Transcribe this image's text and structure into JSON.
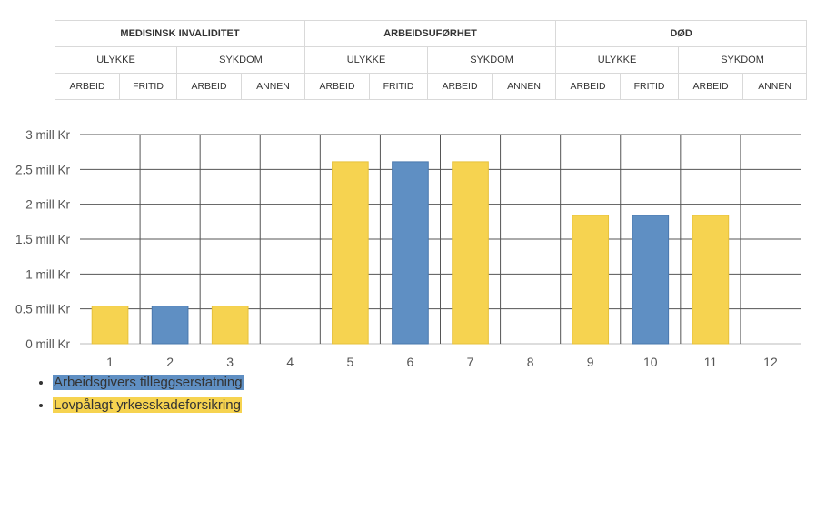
{
  "header": {
    "row1": [
      "MEDISINSK INVALIDITET",
      "ARBEIDSUFØRHET",
      "DØD"
    ],
    "row2": [
      "ULYKKE",
      "SYKDOM",
      "ULYKKE",
      "SYKDOM",
      "ULYKKE",
      "SYKDOM"
    ],
    "row3": [
      "ARBEID",
      "FRITID",
      "ARBEID",
      "ANNEN",
      "ARBEID",
      "FRITID",
      "ARBEID",
      "ANNEN",
      "ARBEID",
      "FRITID",
      "ARBEID",
      "ANNEN"
    ]
  },
  "legend": [
    {
      "label": "Arbeidsgivers tilleggserstatning",
      "color": "#5f8fc3"
    },
    {
      "label": "Lovpålagt yrkesskadeforsikring",
      "color": "#f6d350"
    }
  ],
  "chart_data": {
    "type": "bar",
    "categories": [
      "1",
      "2",
      "3",
      "4",
      "5",
      "6",
      "7",
      "8",
      "9",
      "10",
      "11",
      "12"
    ],
    "ytick_labels": [
      "0 mill Kr",
      "0.5 mill Kr",
      "1 mill Kr",
      "1.5 mill Kr",
      "2 mill Kr",
      "2.5 mill Kr",
      "3 mill Kr"
    ],
    "yticks": [
      0,
      0.5,
      1,
      1.5,
      2,
      2.5,
      3
    ],
    "ylim": [
      0,
      3
    ],
    "grid": true,
    "bars": [
      {
        "category": "1",
        "value": 0.54,
        "series": "Lovpålagt yrkesskadeforsikring"
      },
      {
        "category": "2",
        "value": 0.54,
        "series": "Arbeidsgivers tilleggserstatning"
      },
      {
        "category": "3",
        "value": 0.54,
        "series": "Lovpålagt yrkesskadeforsikring"
      },
      {
        "category": "5",
        "value": 2.61,
        "series": "Lovpålagt yrkesskadeforsikring"
      },
      {
        "category": "6",
        "value": 2.61,
        "series": "Arbeidsgivers tilleggserstatning"
      },
      {
        "category": "7",
        "value": 2.61,
        "series": "Lovpålagt yrkesskadeforsikring"
      },
      {
        "category": "9",
        "value": 1.84,
        "series": "Lovpålagt yrkesskadeforsikring"
      },
      {
        "category": "10",
        "value": 1.84,
        "series": "Arbeidsgivers tilleggserstatning"
      },
      {
        "category": "11",
        "value": 1.84,
        "series": "Lovpålagt yrkesskadeforsikring"
      }
    ]
  }
}
